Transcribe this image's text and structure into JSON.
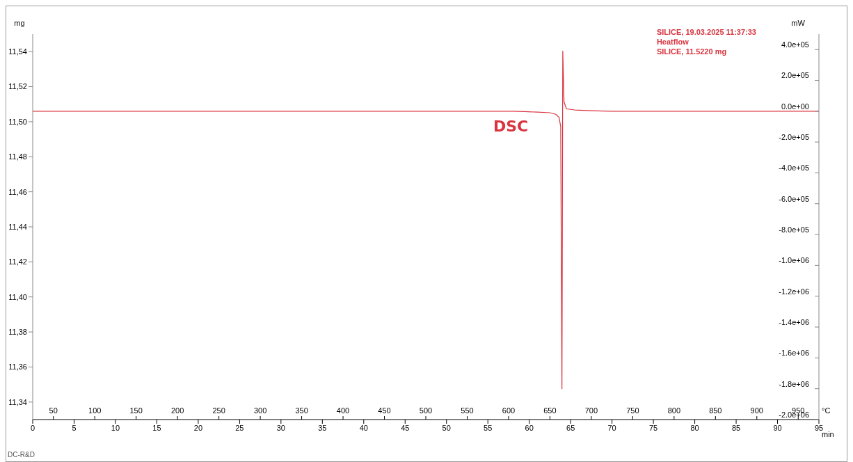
{
  "chart_data": {
    "type": "line",
    "xlabel": "min",
    "x2label": "°C",
    "ylabel": "mg",
    "y2label": "mW",
    "legend_title": "SILICE, 19.03.2025 11:37:33",
    "legend": "top right",
    "xlim": [
      0,
      95
    ],
    "xticks": [
      0,
      5,
      10,
      15,
      20,
      25,
      30,
      35,
      40,
      45,
      50,
      55,
      60,
      65,
      70,
      75,
      80,
      85,
      90,
      95
    ],
    "x2lim": [
      25,
      975
    ],
    "x2ticks": [
      50,
      100,
      150,
      200,
      250,
      300,
      350,
      400,
      450,
      500,
      550,
      600,
      650,
      700,
      750,
      800,
      850,
      900,
      950
    ],
    "ylim": [
      11.33,
      11.55
    ],
    "yticks": [
      {
        "value": 11.34,
        "label": "11,34"
      },
      {
        "value": 11.36,
        "label": "11,36"
      },
      {
        "value": 11.38,
        "label": "11,38"
      },
      {
        "value": 11.4,
        "label": "11,40"
      },
      {
        "value": 11.42,
        "label": "11,42"
      },
      {
        "value": 11.44,
        "label": "11,44"
      },
      {
        "value": 11.46,
        "label": "11,46"
      },
      {
        "value": 11.48,
        "label": "11,48"
      },
      {
        "value": 11.5,
        "label": "11,50"
      },
      {
        "value": 11.52,
        "label": "11,52"
      },
      {
        "value": 11.54,
        "label": "11,54"
      }
    ],
    "y2lim": [
      -2000000,
      500000
    ],
    "y2ticks": [
      {
        "value": -2000000,
        "label": "-2.0e+06"
      },
      {
        "value": -1800000,
        "label": "-1.8e+06"
      },
      {
        "value": -1600000,
        "label": "-1.6e+06"
      },
      {
        "value": -1400000,
        "label": "-1.4e+06"
      },
      {
        "value": -1200000,
        "label": "-1.2e+06"
      },
      {
        "value": -1000000,
        "label": "-1.0e+06"
      },
      {
        "value": -800000,
        "label": "-8.0e+05"
      },
      {
        "value": -600000,
        "label": "-6.0e+05"
      },
      {
        "value": -400000,
        "label": "-4.0e+05"
      },
      {
        "value": -200000,
        "label": "-2.0e+05"
      },
      {
        "value": 0,
        "label": "0.0e+00"
      },
      {
        "value": 200000,
        "label": "2.0e+05"
      },
      {
        "value": 400000,
        "label": "4.0e+05"
      }
    ],
    "grid": false,
    "marker": "none",
    "line_style": "solid",
    "series": [
      {
        "name": "Heatflow",
        "color": "#d9343f",
        "axis": "y2",
        "x": [
          0,
          10,
          30,
          50,
          58,
          59.5,
          61,
          62.5,
          63.2,
          63.6,
          63.8,
          63.95,
          64.05,
          64.2,
          64.5,
          65.5,
          67,
          69,
          70,
          80,
          95
        ],
        "values": [
          0,
          0,
          0,
          0,
          0,
          -3000,
          -6000,
          -10000,
          -20000,
          -40000,
          -100000,
          -1800000,
          390000,
          60000,
          15000,
          8000,
          4000,
          1000,
          0,
          0,
          0
        ]
      }
    ],
    "annotations": [
      "SILICE, 11.5220 mg",
      "DSC",
      "DC-R&D"
    ]
  }
}
